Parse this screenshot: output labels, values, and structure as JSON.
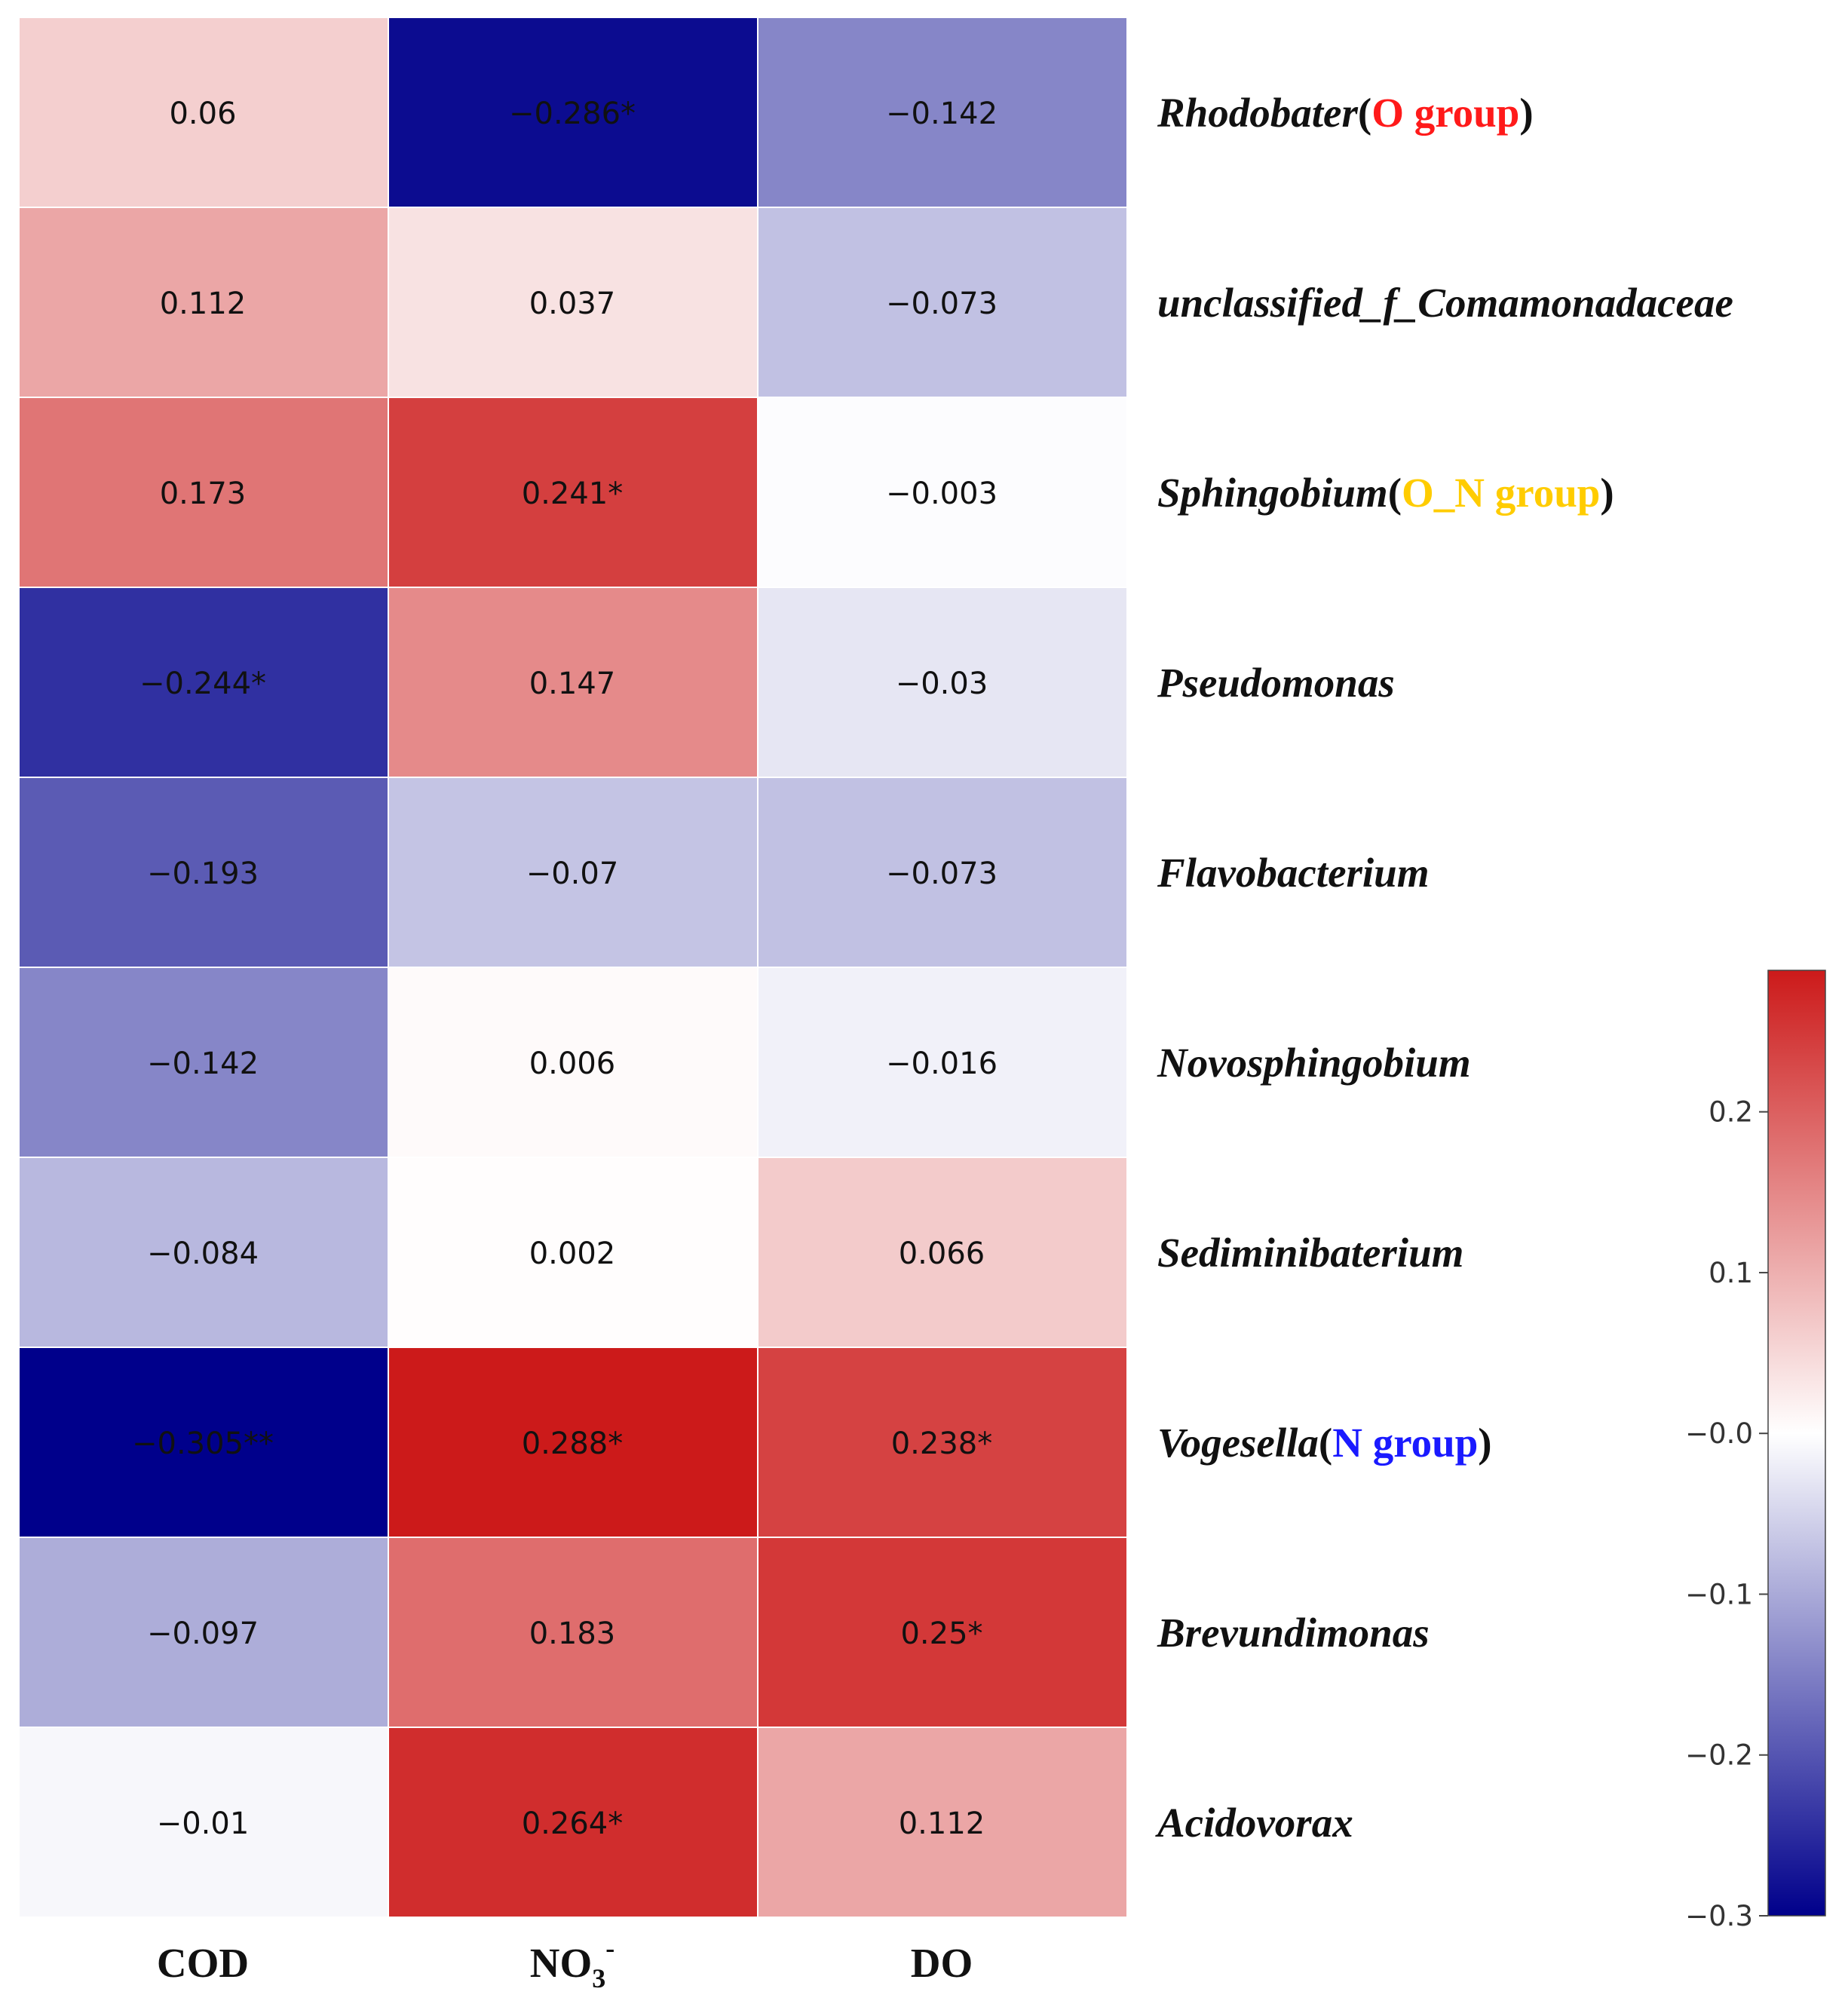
{
  "chart_data": {
    "type": "heatmap",
    "title": "",
    "columns": [
      {
        "label": "COD",
        "sub": "",
        "sup": ""
      },
      {
        "label": "NO",
        "sub": "3",
        "sup": "-"
      },
      {
        "label": "DO",
        "sub": "",
        "sup": ""
      }
    ],
    "rows": [
      {
        "name": "Rhodobater",
        "group": "O group",
        "group_color": "#ff1a1a",
        "values": [
          0.06,
          -0.286,
          -0.142
        ],
        "labels": [
          "0.06",
          "−0.286*",
          "−0.142"
        ]
      },
      {
        "name": "unclassified_f_Comamonadaceae",
        "group": "",
        "group_color": "",
        "values": [
          0.112,
          0.037,
          -0.073
        ],
        "labels": [
          "0.112",
          "0.037",
          "−0.073"
        ]
      },
      {
        "name": "Sphingobium",
        "group": "O_N group",
        "group_color": "#ffcc00",
        "values": [
          0.173,
          0.241,
          -0.003
        ],
        "labels": [
          "0.173",
          "0.241*",
          "−0.003"
        ]
      },
      {
        "name": "Pseudomonas",
        "group": "",
        "group_color": "",
        "values": [
          -0.244,
          0.147,
          -0.03
        ],
        "labels": [
          "−0.244*",
          "0.147",
          "−0.03"
        ]
      },
      {
        "name": "Flavobacterium",
        "group": "",
        "group_color": "",
        "values": [
          -0.193,
          -0.07,
          -0.073
        ],
        "labels": [
          "−0.193",
          "−0.07",
          "−0.073"
        ]
      },
      {
        "name": "Novosphingobium",
        "group": "",
        "group_color": "",
        "values": [
          -0.142,
          0.006,
          -0.016
        ],
        "labels": [
          "−0.142",
          "0.006",
          "−0.016"
        ]
      },
      {
        "name": "Sediminibaterium",
        "group": "",
        "group_color": "",
        "values": [
          -0.084,
          0.002,
          0.066
        ],
        "labels": [
          "−0.084",
          "0.002",
          "0.066"
        ]
      },
      {
        "name": "Vogesella",
        "group": "N group",
        "group_color": "#1a1aff",
        "values": [
          -0.305,
          0.288,
          0.238
        ],
        "labels": [
          "−0.305**",
          "0.288*",
          "0.238*"
        ]
      },
      {
        "name": "Brevundimonas",
        "group": "",
        "group_color": "",
        "values": [
          -0.097,
          0.183,
          0.25
        ],
        "labels": [
          "−0.097",
          "0.183",
          "0.25*"
        ]
      },
      {
        "name": "Acidovorax",
        "group": "",
        "group_color": "",
        "values": [
          -0.01,
          0.264,
          0.112
        ],
        "labels": [
          "−0.01",
          "0.264*",
          "0.112"
        ]
      }
    ],
    "colorbar": {
      "range": [
        -0.3,
        0.288
      ],
      "ticks": [
        0.2,
        0.1,
        0.0,
        -0.1,
        -0.2,
        -0.3
      ],
      "tick_labels": [
        "0.2",
        "0.1",
        "−0.0",
        "−0.1",
        "−0.2",
        "−0.3"
      ],
      "colors": {
        "low": "#00008b",
        "mid": "#ffffff",
        "high": "#cc1a1a"
      }
    }
  }
}
